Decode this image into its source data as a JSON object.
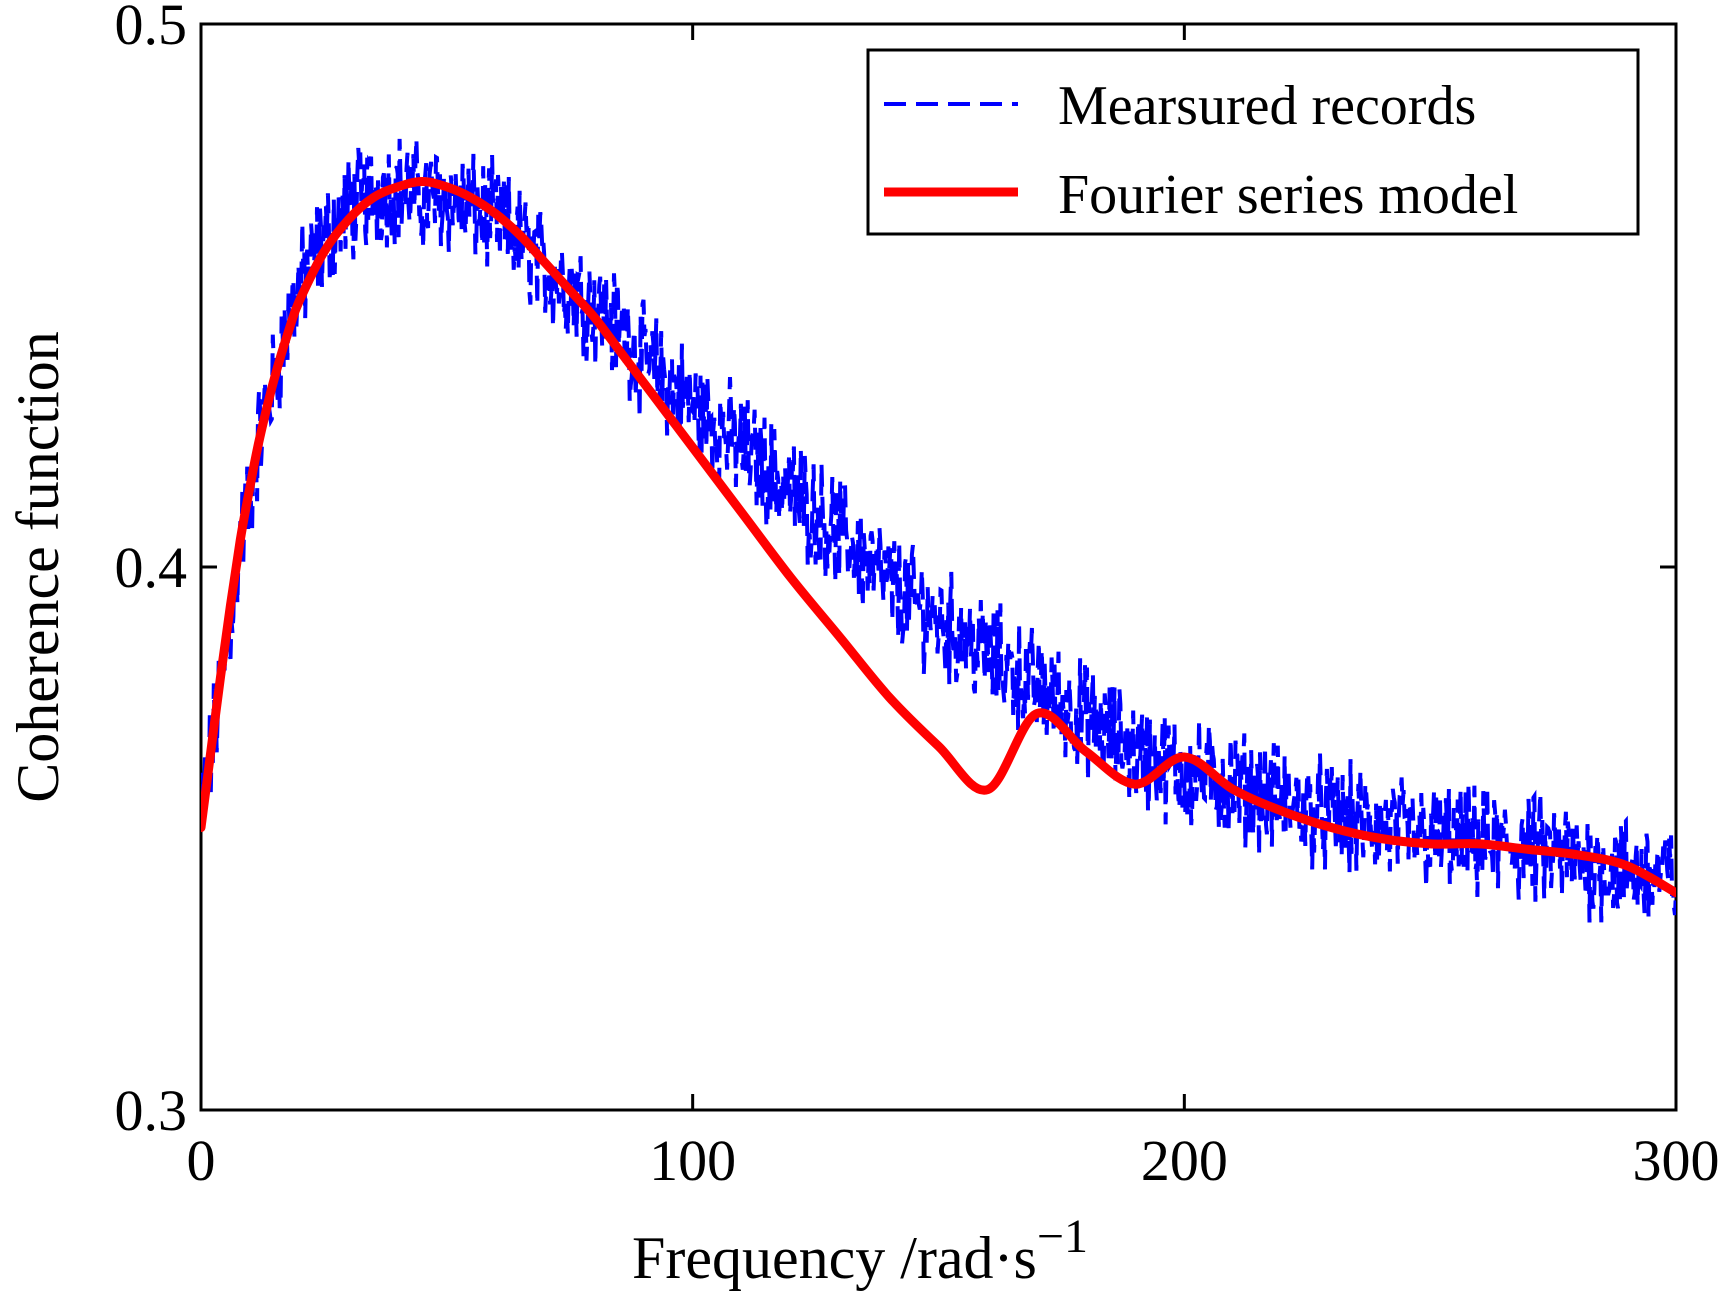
{
  "chart_data": {
    "type": "line",
    "title": "",
    "xlabel": "Frequency  /rad·s",
    "xlabel_superscript": "−1",
    "ylabel": "Coherence function",
    "xlim": [
      0,
      300
    ],
    "ylim": [
      0.3,
      0.5
    ],
    "x_ticks": [
      0,
      100,
      200,
      300
    ],
    "x_tick_labels": [
      "0",
      "100",
      "200",
      "300"
    ],
    "y_ticks": [
      0.3,
      0.4,
      0.5
    ],
    "y_tick_labels": [
      "0.3",
      "0.4",
      "0.5"
    ],
    "grid": false,
    "legend_position": "top-right",
    "series": [
      {
        "name": "Mearsured records",
        "style": "dashed",
        "color": "#0000FF",
        "x": [
          0,
          2,
          4,
          6,
          8,
          10,
          12,
          15,
          18,
          20,
          25,
          30,
          35,
          40,
          45,
          50,
          55,
          60,
          65,
          70,
          75,
          80,
          85,
          90,
          95,
          100,
          110,
          120,
          130,
          140,
          150,
          160,
          170,
          180,
          190,
          200,
          210,
          220,
          230,
          240,
          250,
          260,
          270,
          280,
          290,
          300
        ],
        "values": [
          0.355,
          0.365,
          0.378,
          0.39,
          0.405,
          0.413,
          0.425,
          0.435,
          0.446,
          0.452,
          0.46,
          0.466,
          0.469,
          0.47,
          0.468,
          0.468,
          0.466,
          0.464,
          0.46,
          0.455,
          0.452,
          0.448,
          0.444,
          0.438,
          0.434,
          0.43,
          0.422,
          0.414,
          0.406,
          0.397,
          0.39,
          0.384,
          0.378,
          0.372,
          0.366,
          0.362,
          0.36,
          0.357,
          0.354,
          0.352,
          0.35,
          0.349,
          0.348,
          0.346,
          0.344,
          0.343
        ]
      },
      {
        "name": "Fourier series model",
        "style": "solid",
        "color": "#FF0000",
        "x": [
          0,
          2,
          4,
          6,
          8,
          10,
          12,
          15,
          18,
          20,
          25,
          30,
          35,
          40,
          45,
          50,
          55,
          60,
          65,
          70,
          75,
          80,
          85,
          90,
          95,
          100,
          110,
          120,
          130,
          140,
          150,
          160,
          170,
          180,
          190,
          200,
          210,
          220,
          230,
          240,
          250,
          260,
          270,
          280,
          290,
          300
        ],
        "values": [
          0.352,
          0.366,
          0.38,
          0.393,
          0.405,
          0.415,
          0.424,
          0.435,
          0.444,
          0.449,
          0.458,
          0.464,
          0.468,
          0.47,
          0.471,
          0.47,
          0.468,
          0.465,
          0.461,
          0.456,
          0.451,
          0.446,
          0.44,
          0.434,
          0.428,
          0.422,
          0.41,
          0.398,
          0.387,
          0.376,
          0.367,
          0.359,
          0.373,
          0.366,
          0.36,
          0.365,
          0.359,
          0.355,
          0.352,
          0.35,
          0.349,
          0.349,
          0.348,
          0.347,
          0.345,
          0.34
        ]
      }
    ]
  },
  "colors": {
    "measured": "#0000FF",
    "model": "#FF0000",
    "axis": "#000000"
  }
}
